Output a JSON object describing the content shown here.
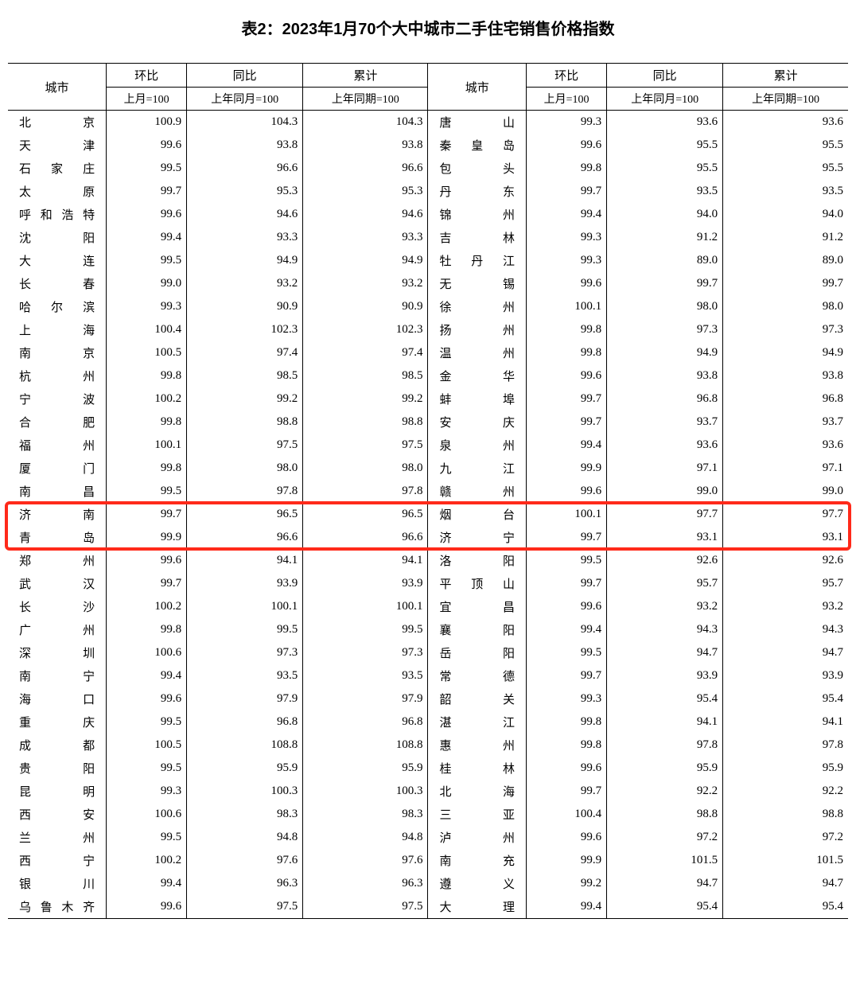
{
  "title": "表2：2023年1月70个大中城市二手住宅销售价格指数",
  "header": {
    "city": "城市",
    "mom": "环比",
    "yoy": "同比",
    "cum": "累计",
    "mom_sub": "上月=100",
    "yoy_sub": "上年同月=100",
    "cum_sub": "上年同期=100"
  },
  "highlight": {
    "start_row_index": 17,
    "row_span": 2,
    "color": "#ff2a1a"
  },
  "rows": [
    {
      "c1": "北　　京",
      "v1": "100.9",
      "v2": "104.3",
      "v3": "104.3",
      "c2": "唐　　山",
      "v4": "99.3",
      "v5": "93.6",
      "v6": "93.6"
    },
    {
      "c1": "天　　津",
      "v1": "99.6",
      "v2": "93.8",
      "v3": "93.8",
      "c2": "秦 皇 岛",
      "v4": "99.6",
      "v5": "95.5",
      "v6": "95.5"
    },
    {
      "c1": "石 家 庄",
      "v1": "99.5",
      "v2": "96.6",
      "v3": "96.6",
      "c2": "包　　头",
      "v4": "99.8",
      "v5": "95.5",
      "v6": "95.5"
    },
    {
      "c1": "太　　原",
      "v1": "99.7",
      "v2": "95.3",
      "v3": "95.3",
      "c2": "丹　　东",
      "v4": "99.7",
      "v5": "93.5",
      "v6": "93.5"
    },
    {
      "c1": "呼和浩特",
      "v1": "99.6",
      "v2": "94.6",
      "v3": "94.6",
      "c2": "锦　　州",
      "v4": "99.4",
      "v5": "94.0",
      "v6": "94.0"
    },
    {
      "c1": "沈　　阳",
      "v1": "99.4",
      "v2": "93.3",
      "v3": "93.3",
      "c2": "吉　　林",
      "v4": "99.3",
      "v5": "91.2",
      "v6": "91.2"
    },
    {
      "c1": "大　　连",
      "v1": "99.5",
      "v2": "94.9",
      "v3": "94.9",
      "c2": "牡 丹 江",
      "v4": "99.3",
      "v5": "89.0",
      "v6": "89.0"
    },
    {
      "c1": "长　　春",
      "v1": "99.0",
      "v2": "93.2",
      "v3": "93.2",
      "c2": "无　　锡",
      "v4": "99.6",
      "v5": "99.7",
      "v6": "99.7"
    },
    {
      "c1": "哈 尔 滨",
      "v1": "99.3",
      "v2": "90.9",
      "v3": "90.9",
      "c2": "徐　　州",
      "v4": "100.1",
      "v5": "98.0",
      "v6": "98.0"
    },
    {
      "c1": "上　　海",
      "v1": "100.4",
      "v2": "102.3",
      "v3": "102.3",
      "c2": "扬　　州",
      "v4": "99.8",
      "v5": "97.3",
      "v6": "97.3"
    },
    {
      "c1": "南　　京",
      "v1": "100.5",
      "v2": "97.4",
      "v3": "97.4",
      "c2": "温　　州",
      "v4": "99.8",
      "v5": "94.9",
      "v6": "94.9"
    },
    {
      "c1": "杭　　州",
      "v1": "99.8",
      "v2": "98.5",
      "v3": "98.5",
      "c2": "金　　华",
      "v4": "99.6",
      "v5": "93.8",
      "v6": "93.8"
    },
    {
      "c1": "宁　　波",
      "v1": "100.2",
      "v2": "99.2",
      "v3": "99.2",
      "c2": "蚌　　埠",
      "v4": "99.7",
      "v5": "96.8",
      "v6": "96.8"
    },
    {
      "c1": "合　　肥",
      "v1": "99.8",
      "v2": "98.8",
      "v3": "98.8",
      "c2": "安　　庆",
      "v4": "99.7",
      "v5": "93.7",
      "v6": "93.7"
    },
    {
      "c1": "福　　州",
      "v1": "100.1",
      "v2": "97.5",
      "v3": "97.5",
      "c2": "泉　　州",
      "v4": "99.4",
      "v5": "93.6",
      "v6": "93.6"
    },
    {
      "c1": "厦　　门",
      "v1": "99.8",
      "v2": "98.0",
      "v3": "98.0",
      "c2": "九　　江",
      "v4": "99.9",
      "v5": "97.1",
      "v6": "97.1"
    },
    {
      "c1": "南　　昌",
      "v1": "99.5",
      "v2": "97.8",
      "v3": "97.8",
      "c2": "赣　　州",
      "v4": "99.6",
      "v5": "99.0",
      "v6": "99.0"
    },
    {
      "c1": "济　　南",
      "v1": "99.7",
      "v2": "96.5",
      "v3": "96.5",
      "c2": "烟　　台",
      "v4": "100.1",
      "v5": "97.7",
      "v6": "97.7"
    },
    {
      "c1": "青　　岛",
      "v1": "99.9",
      "v2": "96.6",
      "v3": "96.6",
      "c2": "济　　宁",
      "v4": "99.7",
      "v5": "93.1",
      "v6": "93.1"
    },
    {
      "c1": "郑　　州",
      "v1": "99.6",
      "v2": "94.1",
      "v3": "94.1",
      "c2": "洛　　阳",
      "v4": "99.5",
      "v5": "92.6",
      "v6": "92.6"
    },
    {
      "c1": "武　　汉",
      "v1": "99.7",
      "v2": "93.9",
      "v3": "93.9",
      "c2": "平 顶 山",
      "v4": "99.7",
      "v5": "95.7",
      "v6": "95.7"
    },
    {
      "c1": "长　　沙",
      "v1": "100.2",
      "v2": "100.1",
      "v3": "100.1",
      "c2": "宜　　昌",
      "v4": "99.6",
      "v5": "93.2",
      "v6": "93.2"
    },
    {
      "c1": "广　　州",
      "v1": "99.8",
      "v2": "99.5",
      "v3": "99.5",
      "c2": "襄　　阳",
      "v4": "99.4",
      "v5": "94.3",
      "v6": "94.3"
    },
    {
      "c1": "深　　圳",
      "v1": "100.6",
      "v2": "97.3",
      "v3": "97.3",
      "c2": "岳　　阳",
      "v4": "99.5",
      "v5": "94.7",
      "v6": "94.7"
    },
    {
      "c1": "南　　宁",
      "v1": "99.4",
      "v2": "93.5",
      "v3": "93.5",
      "c2": "常　　德",
      "v4": "99.7",
      "v5": "93.9",
      "v6": "93.9"
    },
    {
      "c1": "海　　口",
      "v1": "99.6",
      "v2": "97.9",
      "v3": "97.9",
      "c2": "韶　　关",
      "v4": "99.3",
      "v5": "95.4",
      "v6": "95.4"
    },
    {
      "c1": "重　　庆",
      "v1": "99.5",
      "v2": "96.8",
      "v3": "96.8",
      "c2": "湛　　江",
      "v4": "99.8",
      "v5": "94.1",
      "v6": "94.1"
    },
    {
      "c1": "成　　都",
      "v1": "100.5",
      "v2": "108.8",
      "v3": "108.8",
      "c2": "惠　　州",
      "v4": "99.8",
      "v5": "97.8",
      "v6": "97.8"
    },
    {
      "c1": "贵　　阳",
      "v1": "99.5",
      "v2": "95.9",
      "v3": "95.9",
      "c2": "桂　　林",
      "v4": "99.6",
      "v5": "95.9",
      "v6": "95.9"
    },
    {
      "c1": "昆　　明",
      "v1": "99.3",
      "v2": "100.3",
      "v3": "100.3",
      "c2": "北　　海",
      "v4": "99.7",
      "v5": "92.2",
      "v6": "92.2"
    },
    {
      "c1": "西　　安",
      "v1": "100.6",
      "v2": "98.3",
      "v3": "98.3",
      "c2": "三　　亚",
      "v4": "100.4",
      "v5": "98.8",
      "v6": "98.8"
    },
    {
      "c1": "兰　　州",
      "v1": "99.5",
      "v2": "94.8",
      "v3": "94.8",
      "c2": "泸　　州",
      "v4": "99.6",
      "v5": "97.2",
      "v6": "97.2"
    },
    {
      "c1": "西　　宁",
      "v1": "100.2",
      "v2": "97.6",
      "v3": "97.6",
      "c2": "南　　充",
      "v4": "99.9",
      "v5": "101.5",
      "v6": "101.5"
    },
    {
      "c1": "银　　川",
      "v1": "99.4",
      "v2": "96.3",
      "v3": "96.3",
      "c2": "遵　　义",
      "v4": "99.2",
      "v5": "94.7",
      "v6": "94.7"
    },
    {
      "c1": "乌鲁木齐",
      "v1": "99.6",
      "v2": "97.5",
      "v3": "97.5",
      "c2": "大　　理",
      "v4": "99.4",
      "v5": "95.4",
      "v6": "95.4"
    }
  ]
}
